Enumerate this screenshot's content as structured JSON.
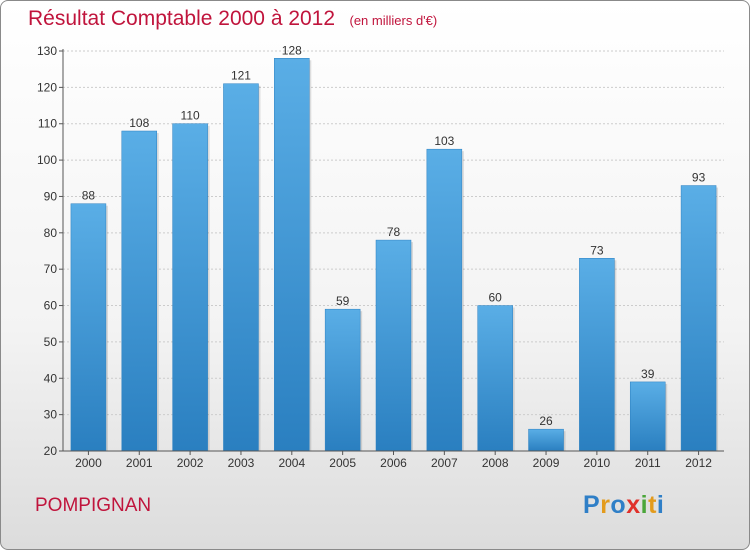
{
  "header": {
    "title": "Résultat Comptable 2000 à 2012",
    "subtitle": "(en milliers d'€)"
  },
  "footer": {
    "commune": "POMPIGNAN",
    "logo_text": "Proxiti"
  },
  "colors": {
    "bar_light": "#5aaee6",
    "bar_dark": "#2a7fc0",
    "title": "#c0143c",
    "grid": "#cccccc",
    "logo": [
      "#2f7fc7",
      "#e39b1c",
      "#2f7fc7",
      "#e0302a",
      "#4aa63a",
      "#e39b1c",
      "#2f7fc7"
    ]
  },
  "chart_data": {
    "type": "bar",
    "categories": [
      "2000",
      "2001",
      "2002",
      "2003",
      "2004",
      "2005",
      "2006",
      "2007",
      "2008",
      "2009",
      "2010",
      "2011",
      "2012"
    ],
    "values": [
      88,
      108,
      110,
      121,
      128,
      59,
      78,
      103,
      60,
      26,
      73,
      39,
      93
    ],
    "ylim": [
      20,
      130
    ],
    "yticks": [
      20,
      30,
      40,
      50,
      60,
      70,
      80,
      90,
      100,
      110,
      120,
      130
    ],
    "grid": true
  }
}
